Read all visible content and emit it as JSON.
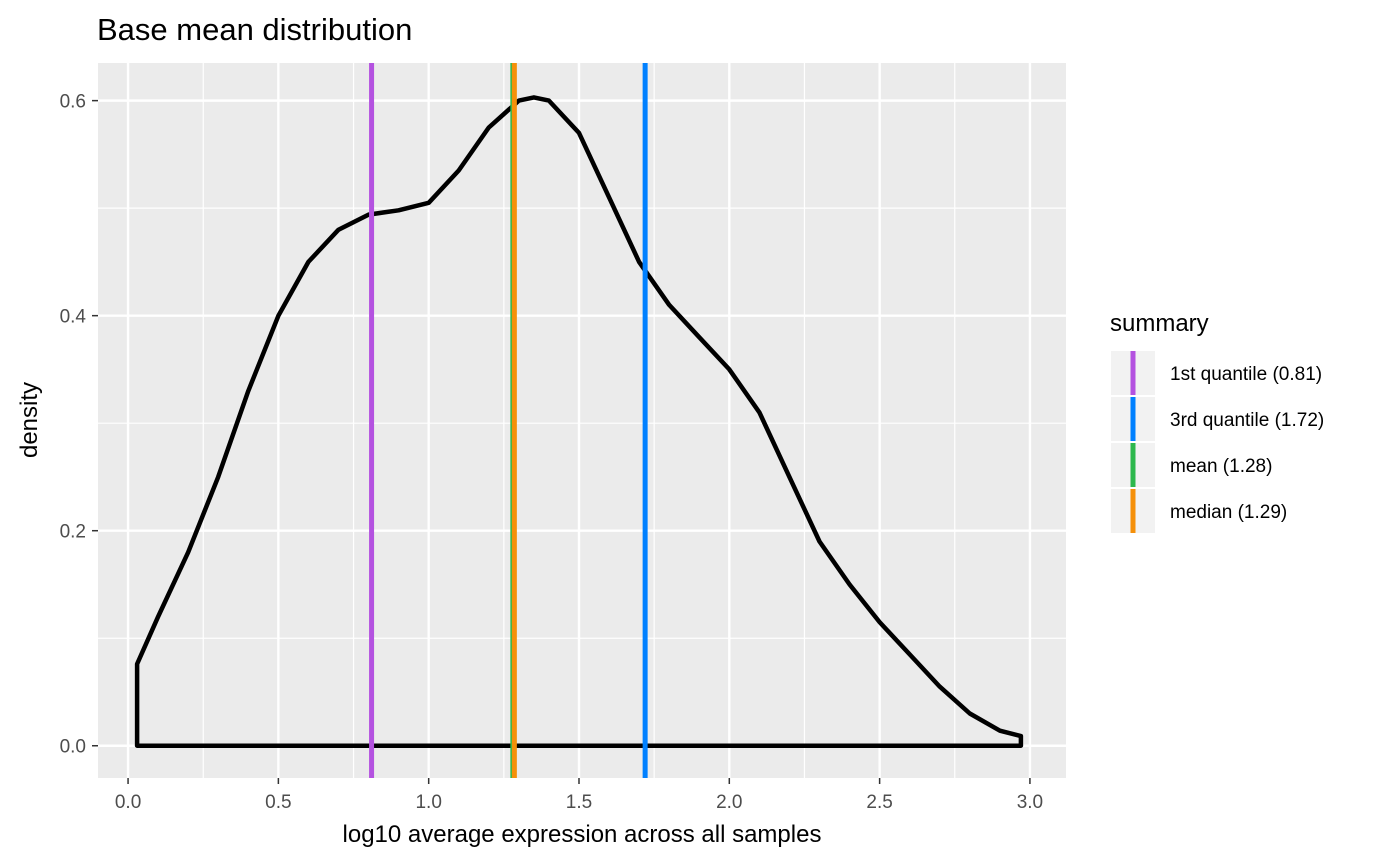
{
  "chart_data": {
    "type": "line",
    "title": "Base mean distribution",
    "xlabel": "log10 average expression across all samples",
    "ylabel": "density",
    "xlim": [
      -0.1,
      3.12
    ],
    "ylim": [
      -0.03,
      0.635
    ],
    "x_ticks": [
      0.0,
      0.5,
      1.0,
      1.5,
      2.0,
      2.5,
      3.0
    ],
    "x_tick_labels": [
      "0.0",
      "0.5",
      "1.0",
      "1.5",
      "2.0",
      "2.5",
      "3.0"
    ],
    "y_ticks": [
      0.0,
      0.2,
      0.4,
      0.6
    ],
    "y_tick_labels": [
      "0.0",
      "0.2",
      "0.4",
      "0.6"
    ],
    "grid": true,
    "panel_background": "#EBEBEB",
    "series": [
      {
        "color": "#000000",
        "x": [
          0.03,
          0.03,
          0.1,
          0.2,
          0.3,
          0.4,
          0.5,
          0.6,
          0.7,
          0.8,
          0.9,
          1.0,
          1.1,
          1.2,
          1.3,
          1.35,
          1.4,
          1.5,
          1.6,
          1.7,
          1.8,
          1.9,
          2.0,
          2.1,
          2.2,
          2.3,
          2.4,
          2.5,
          2.6,
          2.7,
          2.8,
          2.9,
          2.97,
          2.97,
          0.03
        ],
        "y": [
          0.0,
          0.076,
          0.12,
          0.18,
          0.25,
          0.33,
          0.4,
          0.45,
          0.48,
          0.494,
          0.498,
          0.505,
          0.535,
          0.575,
          0.6,
          0.603,
          0.6,
          0.57,
          0.51,
          0.45,
          0.41,
          0.38,
          0.35,
          0.31,
          0.25,
          0.19,
          0.15,
          0.115,
          0.085,
          0.055,
          0.03,
          0.014,
          0.009,
          0.0,
          0.0
        ]
      }
    ],
    "vlines": [
      {
        "name": "1st quantile (0.81)",
        "x": 0.81,
        "color": "#B452E0"
      },
      {
        "name": "3rd quantile (1.72)",
        "x": 1.72,
        "color": "#0080FF"
      },
      {
        "name": "mean (1.28)",
        "x": 1.28,
        "color": "#2DB84D"
      },
      {
        "name": "median (1.29)",
        "x": 1.285,
        "color": "#F5900A"
      }
    ],
    "legend": {
      "title": "summary",
      "position": "right"
    }
  }
}
